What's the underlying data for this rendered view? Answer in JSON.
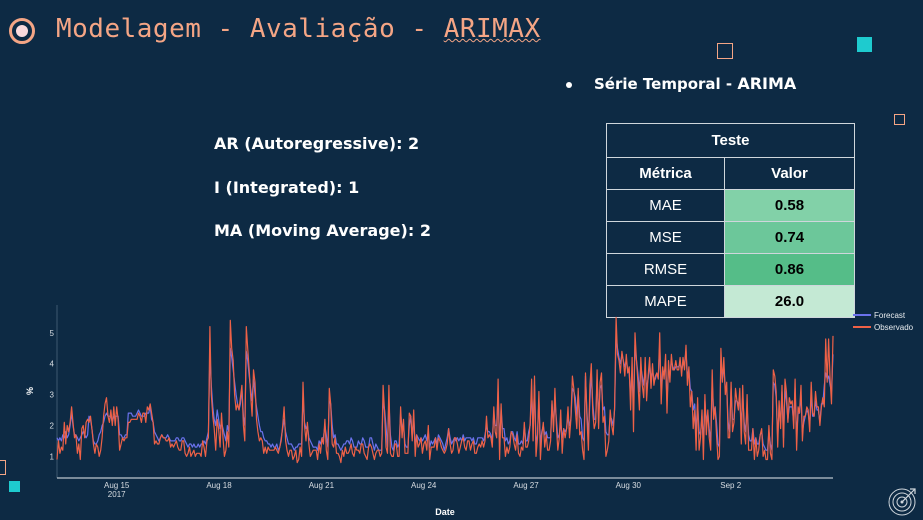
{
  "header": {
    "title_prefix": "Modelagem - Avaliação - ",
    "title_last": "ARIMAX"
  },
  "bullet": {
    "label": "Série Temporal - ",
    "model": "ARIMA"
  },
  "params": [
    {
      "label": "AR (Autoregressive):",
      "value": "2"
    },
    {
      "label": "I (Integrated):",
      "value": "1"
    },
    {
      "label": "MA (Moving Average):",
      "value": "2"
    }
  ],
  "metrics_table": {
    "caption": "Teste",
    "headers": [
      "Métrica",
      "Valor"
    ],
    "rows": [
      {
        "metric": "MAE",
        "value": "0.58",
        "color": "#82d1a8"
      },
      {
        "metric": "MSE",
        "value": "0.74",
        "color": "#6cc79a"
      },
      {
        "metric": "RMSE",
        "value": "0.86",
        "color": "#55bd88"
      },
      {
        "metric": "MAPE",
        "value": "26.0",
        "color": "#c4e9d4"
      }
    ]
  },
  "colors": {
    "forecast": "#6b72ec",
    "observed": "#ee6147",
    "title": "#f4a585",
    "accent": "#1ecbcf",
    "background": "#0d2a44"
  },
  "icons": {
    "title": "record-circle-icon",
    "corner": "target-icon"
  },
  "chart_data": {
    "type": "line",
    "xlabel": "Date",
    "ylabel": "%",
    "x_start": "2017-08-13 06:00",
    "x_end": "2017-09-05 00:00",
    "x_tick_labels": [
      "Aug 15",
      "Aug 18",
      "Aug 21",
      "Aug 24",
      "Aug 27",
      "Aug 30",
      "Sep 2"
    ],
    "x_tick_dates": [
      "2017-08-15",
      "2017-08-18",
      "2017-08-21",
      "2017-08-24",
      "2017-08-27",
      "2017-08-30",
      "2017-09-02"
    ],
    "x_year_label": "2017",
    "y_ticks": [
      1,
      2,
      3,
      4,
      5
    ],
    "ylim": [
      0.3,
      5.9
    ],
    "legend_position": "top-right",
    "series": [
      {
        "name": "Forecast",
        "values": [
          1.6,
          1.5,
          1.6,
          1.5,
          1.7,
          1.6,
          1.8,
          1.6,
          1.7,
          2.0,
          2.4,
          2.0,
          1.7,
          1.7,
          1.6,
          1.5,
          1.6,
          1.7,
          1.8,
          1.7,
          1.6,
          1.7,
          2.3,
          2.2,
          1.9,
          1.5,
          1.4,
          1.4,
          1.5,
          1.7,
          1.8,
          2.0,
          2.1,
          2.3,
          2.4,
          2.3,
          2.3,
          2.3,
          2.1,
          2.3,
          2.3,
          2.3,
          2.3,
          1.7,
          1.7,
          1.6,
          1.6,
          1.7,
          1.7,
          2.4,
          2.4,
          2.4,
          2.3,
          2.3,
          2.3,
          2.4,
          2.5,
          2.4,
          2.3,
          2.3,
          2.3,
          2.4,
          2.4,
          2.4,
          2.6,
          2.2,
          2.1,
          1.8,
          1.7,
          1.6,
          1.5,
          1.6,
          1.7,
          1.6,
          1.6,
          1.6,
          1.7,
          1.6,
          1.5,
          1.5,
          1.5,
          1.5,
          1.6,
          1.6,
          1.5,
          1.5,
          1.6,
          1.6,
          1.5,
          1.4,
          1.3,
          1.4,
          1.4,
          1.3,
          1.4,
          1.3,
          1.3,
          1.4,
          1.3,
          1.4,
          1.4,
          1.5,
          1.4,
          1.6,
          1.8,
          4.3,
          3.3,
          2.6,
          2.2,
          2.0,
          2.5,
          2.2,
          1.9,
          2.1,
          1.9,
          1.7,
          1.5,
          2.0,
          1.8,
          4.5,
          4.2,
          3.8,
          3.4,
          3.0,
          2.7,
          2.5,
          2.7,
          3.2,
          2.3,
          2.0,
          4.4,
          4.1,
          3.6,
          3.2,
          2.8,
          3.5,
          3.0,
          2.6,
          2.3,
          2.0,
          1.8,
          1.8,
          1.6,
          1.5,
          1.5,
          1.4,
          1.4,
          1.3,
          1.4,
          1.3,
          1.3,
          1.4,
          1.2,
          1.3,
          1.6,
          1.9,
          2.2,
          1.8,
          1.6,
          1.4,
          1.4,
          1.4,
          1.3,
          1.2,
          1.3,
          1.3,
          1.4,
          1.4,
          1.4,
          2.9,
          2.1,
          1.9,
          2.0,
          1.6,
          1.5,
          1.4,
          1.3,
          1.3,
          1.3,
          1.2,
          1.5,
          1.4,
          1.6,
          1.6,
          2.0,
          1.7,
          1.3,
          2.8,
          2.7,
          2.0,
          1.6,
          1.7,
          1.4,
          1.4,
          1.3,
          1.2,
          1.3,
          1.4,
          1.4,
          1.5,
          1.5,
          1.4,
          1.6,
          1.5,
          1.3,
          1.3,
          1.3,
          1.5,
          1.4,
          1.4,
          1.6,
          1.5,
          1.3,
          1.3,
          1.3,
          1.6,
          1.6,
          1.4,
          1.2,
          1.4,
          1.3,
          1.2,
          1.2,
          1.2,
          2.8,
          2.5,
          2.0,
          1.3,
          2.8,
          1.7,
          1.3,
          1.2,
          1.5,
          1.5,
          1.3,
          1.4,
          2.4,
          1.9,
          2.0,
          1.4,
          1.3,
          1.3,
          2.0,
          2.3,
          1.6,
          2.3,
          1.3,
          1.7,
          1.6,
          1.5,
          1.6,
          1.5,
          1.6,
          1.7,
          1.5,
          1.8,
          1.3,
          1.5,
          1.4,
          1.5,
          1.6,
          1.4,
          1.7,
          1.6,
          1.5,
          1.4,
          1.2,
          1.4,
          1.6,
          1.9,
          1.6,
          1.4,
          1.5,
          1.6,
          1.5,
          1.6,
          1.5,
          1.6,
          1.5,
          1.7,
          1.5,
          1.6,
          1.6,
          1.6,
          1.6,
          1.5,
          1.6,
          1.4,
          1.4,
          1.6,
          1.6,
          1.6,
          1.6,
          1.5,
          1.7,
          2.0,
          1.8,
          1.8,
          1.7,
          1.5,
          2.4,
          2.0,
          2.0,
          3.1,
          1.4,
          2.5,
          1.9,
          1.9,
          1.5,
          1.6,
          1.4,
          1.5,
          1.8,
          1.8,
          1.6,
          1.5,
          1.8,
          1.4,
          1.4,
          1.5,
          1.4,
          2.0,
          1.5,
          1.5,
          1.8,
          2.0,
          3.1,
          1.9,
          3.3,
          1.4,
          1.7,
          2.8,
          1.4,
          1.8,
          2.0,
          1.7,
          1.8,
          1.6,
          1.6,
          1.6,
          2.7,
          2.0,
          2.8,
          2.2,
          1.6,
          1.7,
          2.1,
          1.6,
          1.9,
          1.8,
          1.9,
          2.3,
          2.0,
          2.2,
          3.2,
          3.1,
          2.9,
          2.3,
          3.1,
          2.3,
          2.2,
          1.6,
          1.5,
          3.6,
          2.4,
          1.7,
          2.8,
          3.7,
          2.7,
          2.2,
          2.2,
          3.5,
          2.3,
          3.2,
          3.3,
          2.5,
          2.6,
          1.8,
          1.7,
          1.7,
          2.3,
          2.2,
          2.0,
          2.5,
          4.9,
          4.5,
          4.2,
          4.0,
          4.3,
          4.1,
          3.9,
          4.1,
          3.8,
          3.7,
          2.9,
          3.8,
          2.5,
          4.6,
          4.1,
          3.7,
          3.1,
          3.9,
          3.6,
          3.3,
          3.8,
          3.2,
          3.5,
          4.0,
          3.5,
          3.8,
          3.5,
          3.5,
          3.7,
          3.6,
          4.6,
          3.1,
          3.8,
          3.7,
          3.9,
          2.8,
          3.8,
          3.6,
          4.1,
          3.9,
          3.8,
          3.9,
          3.9,
          3.9,
          4.0,
          3.8,
          4.0,
          4.0,
          4.4,
          3.6,
          3.8,
          3.2,
          3.1,
          2.5,
          2.7,
          1.8,
          2.7,
          1.8,
          1.7,
          2.3,
          1.5,
          2.8,
          2.1,
          2.4,
          1.9,
          1.5,
          3.4,
          2.4,
          2.6,
          2.1,
          1.4,
          1.3,
          4.1,
          3.5,
          3.9,
          3.2,
          3.2,
          2.1,
          1.8,
          3.2,
          2.2,
          2.2,
          2.8,
          2.8,
          2.7,
          2.8,
          2.0,
          3.0,
          2.1,
          1.8,
          2.6,
          1.7,
          1.5,
          1.5,
          1.9,
          1.4,
          1.6,
          1.4,
          1.4,
          1.7,
          1.8,
          1.4,
          1.3,
          1.2,
          1.2,
          1.8,
          1.4,
          1.2,
          3.4,
          3.3,
          2.9,
          1.6,
          2.6,
          2.1,
          3.1,
          1.6,
          3.2,
          2.8,
          2.2,
          2.6,
          2.6,
          2.6,
          2.1,
          3.2,
          1.7,
          2.4,
          2.4,
          3.0,
          1.8,
          2.1,
          2.3,
          2.5,
          2.4,
          2.0,
          3.0,
          2.3,
          2.3,
          2.8,
          2.5,
          2.5,
          2.1,
          2.7,
          2.7,
          3.3,
          3.7,
          3.5,
          3.6,
          3.3,
          3.1,
          4.3
        ]
      },
      {
        "name": "Observado",
        "values": [
          0.9,
          1.5,
          1.1,
          1.3,
          1.2,
          2.1,
          1.4,
          2.0,
          1.8,
          2.1,
          2.6,
          2.1,
          1.6,
          1.7,
          1.1,
          1.4,
          0.9,
          1.9,
          2.0,
          1.6,
          2.1,
          2.2,
          2.1,
          2.3,
          1.9,
          1.4,
          1.1,
          1.4,
          1.3,
          1.0,
          1.2,
          1.6,
          2.3,
          2.7,
          2.9,
          2.3,
          2.1,
          2.5,
          2.0,
          2.6,
          2.0,
          2.6,
          2.2,
          1.2,
          1.4,
          1.6,
          1.5,
          1.6,
          1.6,
          2.1,
          2.1,
          2.2,
          2.2,
          2.2,
          2.2,
          2.2,
          2.4,
          2.3,
          2.1,
          2.4,
          2.4,
          2.1,
          2.6,
          2.5,
          2.7,
          2.4,
          2.1,
          1.4,
          1.5,
          1.4,
          1.4,
          1.6,
          1.7,
          1.6,
          1.6,
          1.5,
          1.5,
          1.6,
          1.3,
          1.4,
          1.3,
          1.4,
          1.5,
          1.3,
          1.2,
          1.2,
          1.5,
          1.5,
          1.1,
          1.0,
          1.1,
          1.3,
          1.0,
          1.1,
          1.2,
          1.0,
          1.1,
          1.1,
          1.1,
          1.0,
          1.5,
          1.3,
          1.0,
          1.5,
          1.6,
          5.2,
          3.0,
          2.3,
          1.9,
          1.2,
          2.2,
          1.9,
          1.3,
          2.4,
          1.6,
          1.0,
          1.2,
          1.8,
          1.3,
          5.4,
          4.5,
          4.1,
          3.0,
          2.5,
          2.7,
          2.5,
          2.9,
          3.3,
          2.0,
          1.5,
          5.2,
          4.5,
          3.8,
          3.0,
          2.3,
          3.8,
          3.4,
          2.2,
          1.8,
          1.5,
          1.6,
          1.5,
          1.1,
          1.3,
          1.1,
          1.3,
          1.2,
          1.2,
          1.2,
          1.2,
          1.3,
          1.2,
          1.1,
          1.3,
          1.5,
          2.0,
          2.6,
          1.5,
          1.2,
          1.0,
          1.2,
          1.2,
          0.9,
          1.0,
          1.2,
          0.8,
          0.9,
          1.3,
          1.0,
          3.4,
          2.0,
          1.5,
          2.1,
          1.4,
          1.0,
          1.1,
          1.2,
          1.2,
          1.2,
          0.9,
          1.4,
          1.1,
          1.6,
          1.4,
          2.2,
          1.2,
          0.9,
          3.2,
          2.7,
          1.4,
          1.3,
          1.6,
          1.1,
          1.1,
          1.0,
          0.8,
          1.2,
          1.0,
          1.3,
          1.1,
          1.1,
          1.2,
          1.4,
          1.1,
          1.0,
          1.3,
          1.2,
          1.2,
          1.1,
          1.4,
          1.4,
          1.1,
          1.0,
          0.9,
          1.3,
          1.4,
          1.3,
          1.1,
          0.9,
          1.1,
          1.2,
          1.2,
          1.0,
          1.1,
          3.3,
          2.4,
          1.3,
          1.1,
          3.3,
          1.1,
          1.0,
          1.0,
          1.4,
          1.4,
          1.0,
          1.0,
          2.6,
          1.6,
          2.2,
          1.1,
          1.1,
          1.1,
          2.4,
          2.3,
          1.5,
          2.5,
          1.0,
          1.7,
          1.3,
          1.4,
          1.6,
          1.1,
          1.4,
          1.5,
          1.2,
          2.0,
          0.9,
          1.3,
          1.3,
          1.3,
          1.6,
          1.2,
          1.6,
          1.5,
          1.3,
          1.2,
          1.1,
          1.2,
          1.4,
          1.9,
          1.4,
          1.1,
          1.2,
          1.6,
          1.6,
          1.4,
          1.1,
          1.3,
          1.5,
          1.6,
          1.3,
          1.2,
          1.5,
          1.5,
          1.2,
          1.4,
          1.5,
          1.1,
          1.1,
          1.3,
          1.4,
          1.3,
          1.5,
          1.3,
          1.5,
          2.3,
          1.6,
          1.7,
          1.6,
          1.3,
          2.6,
          1.8,
          1.6,
          3.5,
          0.9,
          2.7,
          1.6,
          1.6,
          1.0,
          1.3,
          1.1,
          1.3,
          1.8,
          1.7,
          1.4,
          1.2,
          1.7,
          1.1,
          1.0,
          1.3,
          1.2,
          2.1,
          1.3,
          1.3,
          1.5,
          2.1,
          3.5,
          1.5,
          3.6,
          1.0,
          1.6,
          3.1,
          0.9,
          1.7,
          2.1,
          1.3,
          1.7,
          1.2,
          1.2,
          1.5,
          2.8,
          1.8,
          3.2,
          2.0,
          1.2,
          1.6,
          2.5,
          1.1,
          1.9,
          1.6,
          1.9,
          2.6,
          1.6,
          2.2,
          3.6,
          3.2,
          2.5,
          1.9,
          3.2,
          1.7,
          1.8,
          1.2,
          0.9,
          3.7,
          2.2,
          1.2,
          3.3,
          4.0,
          2.4,
          1.9,
          2.1,
          3.8,
          1.9,
          3.4,
          3.7,
          2.1,
          2.3,
          1.0,
          1.2,
          1.5,
          2.5,
          2.0,
          1.7,
          2.6,
          5.5,
          4.3,
          4.1,
          3.7,
          4.4,
          4.1,
          3.6,
          4.3,
          3.7,
          3.9,
          2.5,
          4.2,
          1.8,
          5.0,
          4.1,
          3.4,
          2.5,
          4.2,
          3.3,
          2.9,
          4.2,
          2.8,
          3.6,
          4.2,
          3.2,
          4.0,
          3.3,
          3.6,
          3.7,
          3.5,
          5.0,
          2.7,
          3.9,
          3.5,
          4.3,
          2.4,
          4.1,
          3.4,
          4.3,
          3.8,
          3.8,
          4.1,
          3.8,
          3.8,
          4.2,
          3.6,
          4.2,
          3.8,
          4.6,
          3.3,
          3.9,
          2.6,
          3.1,
          1.9,
          2.5,
          1.2,
          2.9,
          1.2,
          1.6,
          2.5,
          0.9,
          3.0,
          1.7,
          2.5,
          1.6,
          1.2,
          3.8,
          2.2,
          2.6,
          1.7,
          0.9,
          1.0,
          4.5,
          3.4,
          4.2,
          3.0,
          3.4,
          1.6,
          1.6,
          3.4,
          1.8,
          2.1,
          3.2,
          2.8,
          2.5,
          3.2,
          1.4,
          3.3,
          1.8,
          1.4,
          3.0,
          1.2,
          1.2,
          1.2,
          1.9,
          0.9,
          1.6,
          1.0,
          1.2,
          1.7,
          1.9,
          1.0,
          1.2,
          0.9,
          0.9,
          2.0,
          1.1,
          0.9,
          3.8,
          3.6,
          3.1,
          1.3,
          2.8,
          1.9,
          3.3,
          1.3,
          3.5,
          3.1,
          2.1,
          2.9,
          2.7,
          2.8,
          1.9,
          3.5,
          1.2,
          2.6,
          2.4,
          3.3,
          1.5,
          2.3,
          2.3,
          2.6,
          2.5,
          1.8,
          3.4,
          2.4,
          2.3,
          3.1,
          2.6,
          2.6,
          2.0,
          2.6,
          2.9,
          2.6,
          4.8,
          3.4,
          4.8,
          3.5,
          2.7,
          4.9
        ]
      }
    ]
  }
}
